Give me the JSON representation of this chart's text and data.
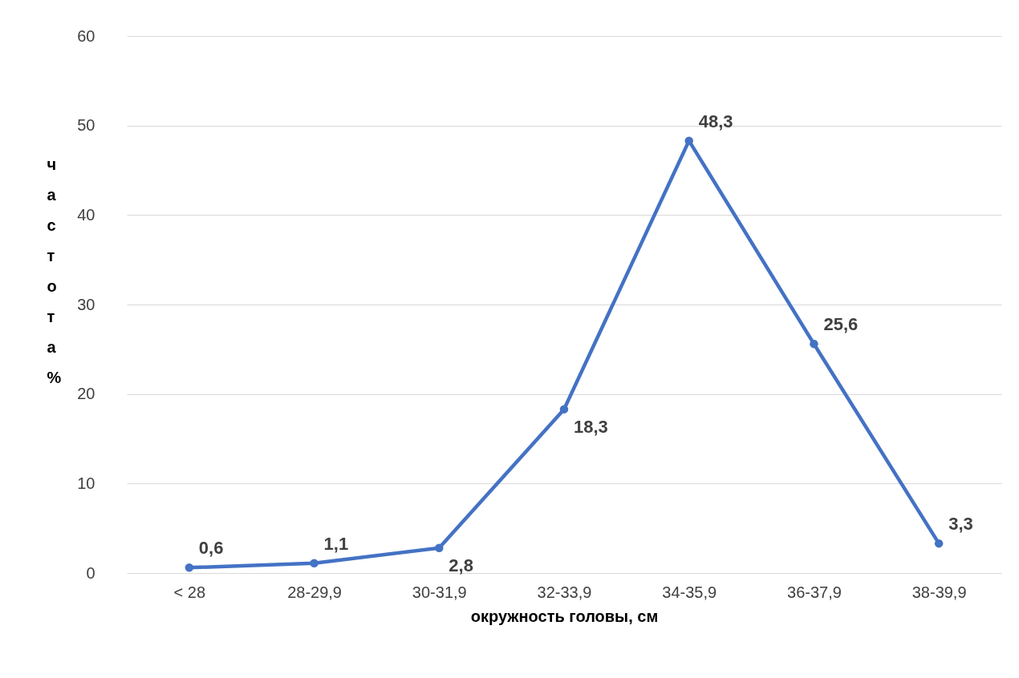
{
  "chart_data": {
    "type": "line",
    "xlabel": "окружность головы, см",
    "ylabel": "частота %",
    "categories": [
      "< 28",
      "28-29,9",
      "30-31,9",
      "32-33,9",
      "34-35,9",
      "36-37,9",
      "38-39,9"
    ],
    "series": [
      {
        "color": "#4472c4",
        "values": [
          0.6,
          1.1,
          2.8,
          18.3,
          48.3,
          25.6,
          3.3
        ]
      }
    ],
    "value_labels": [
      "0,6",
      "1,1",
      "2,8",
      "18,3",
      "48,3",
      "25,6",
      "3,3"
    ],
    "ylim": [
      0,
      60
    ],
    "yticks": [
      0,
      10,
      20,
      30,
      40,
      50,
      60
    ],
    "grid": "y",
    "marker": "circle",
    "legend": false
  }
}
